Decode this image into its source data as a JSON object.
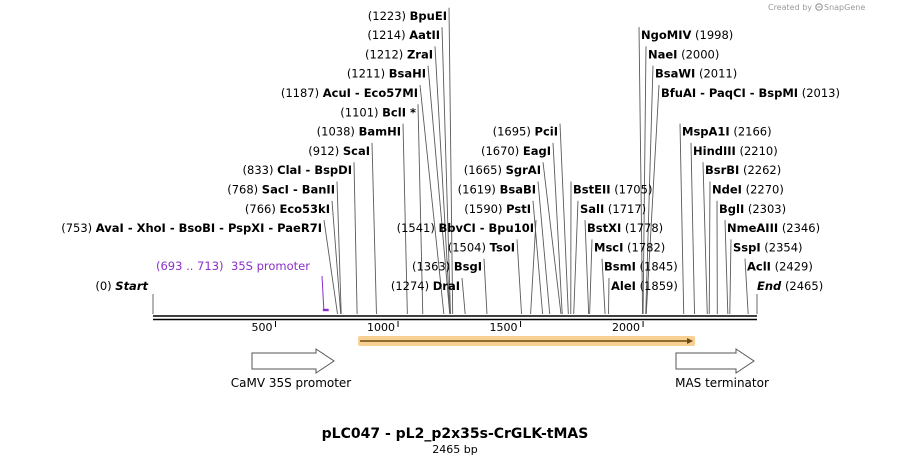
{
  "credit": {
    "created_by": "Created by",
    "brand": "SnapGene"
  },
  "title": "pLC047 - pL2_p2x35s-CrGLK-tMAS",
  "subtitle": "2465 bp",
  "total_bp": 2465,
  "ticks": [
    {
      "bp": 500,
      "label": "500"
    },
    {
      "bp": 1000,
      "label": "1000"
    },
    {
      "bp": 1500,
      "label": "1500"
    },
    {
      "bp": 2000,
      "label": "2000"
    }
  ],
  "promoter_region": {
    "label_pos": "(693 .. 713)",
    "label_name": "35S promoter",
    "start": 693,
    "end": 713,
    "color": "#8b2fc9"
  },
  "features": [
    {
      "name": "CaMV 35S promoter",
      "start": 405,
      "end": 748,
      "direction": "right"
    },
    {
      "name": "MAS terminator",
      "start": 2200,
      "end": 2400,
      "direction": "right"
    }
  ],
  "orf": {
    "start": 837,
    "end": 2200,
    "color": "#f2a93b"
  },
  "sites": [
    {
      "pos": "(0)",
      "name": "Start",
      "bp": 0,
      "style": "italic",
      "row": 0,
      "side": "left"
    },
    {
      "pos": "(1274)",
      "name": "DraI",
      "bp": 1274,
      "row": 0,
      "side": "left"
    },
    {
      "pos": "(1363)",
      "name": "BsgI",
      "bp": 1363,
      "row": 1,
      "side": "left"
    },
    {
      "pos": "(1504)",
      "name": "TsoI",
      "bp": 1504,
      "row": 2,
      "side": "left"
    },
    {
      "pos": "(1541)",
      "name": "BbvCI - Bpu10I",
      "bp": 1541,
      "row": 3,
      "side": "left"
    },
    {
      "pos": "(1590)",
      "name": "PstI",
      "bp": 1590,
      "row": 4,
      "side": "left"
    },
    {
      "pos": "(1619)",
      "name": "BsaBI",
      "bp": 1619,
      "row": 5,
      "side": "left"
    },
    {
      "pos": "(1665)",
      "name": "SgrAI",
      "bp": 1665,
      "row": 6,
      "side": "left"
    },
    {
      "pos": "(1670)",
      "name": "EagI",
      "bp": 1670,
      "row": 7,
      "side": "left"
    },
    {
      "pos": "(1695)",
      "name": "PciI",
      "bp": 1695,
      "row": 8,
      "side": "left"
    },
    {
      "pos": "(753)",
      "name": "AvaI - XhoI - BsoBI - PspXI - PaeR7I",
      "bp": 753,
      "row": 3,
      "side": "left"
    },
    {
      "pos": "(766)",
      "name": "Eco53kI",
      "bp": 766,
      "row": 4,
      "side": "left"
    },
    {
      "pos": "(768)",
      "name": "SacI - BanII",
      "bp": 768,
      "row": 5,
      "side": "left"
    },
    {
      "pos": "(833)",
      "name": "ClaI - BspDI",
      "bp": 833,
      "row": 6,
      "side": "left"
    },
    {
      "pos": "(912)",
      "name": "ScaI",
      "bp": 912,
      "row": 7,
      "side": "left"
    },
    {
      "pos": "(1038)",
      "name": "BamHI",
      "bp": 1038,
      "row": 8,
      "side": "left"
    },
    {
      "pos": "(1101)",
      "name": "BclI *",
      "bp": 1101,
      "row": 9,
      "side": "left"
    },
    {
      "pos": "(1187)",
      "name": "AcuI - Eco57MI",
      "bp": 1187,
      "row": 10,
      "side": "left"
    },
    {
      "pos": "(1211)",
      "name": "BsaHI",
      "bp": 1211,
      "row": 11,
      "side": "left"
    },
    {
      "pos": "(1212)",
      "name": "ZraI",
      "bp": 1212,
      "row": 12,
      "side": "left"
    },
    {
      "pos": "(1214)",
      "name": "AatII",
      "bp": 1214,
      "row": 13,
      "side": "left"
    },
    {
      "pos": "(1223)",
      "name": "BpuEI",
      "bp": 1223,
      "row": 14,
      "side": "left"
    },
    {
      "pos": "(1859)",
      "name": "AleI",
      "bp": 1859,
      "row": 0,
      "side": "right"
    },
    {
      "pos": "(1845)",
      "name": "BsmI",
      "bp": 1845,
      "row": 1,
      "side": "right"
    },
    {
      "pos": "(1782)",
      "name": "MscI",
      "bp": 1782,
      "row": 2,
      "side": "right"
    },
    {
      "pos": "(1778)",
      "name": "BstXI",
      "bp": 1778,
      "row": 3,
      "side": "right"
    },
    {
      "pos": "(1717)",
      "name": "SalI",
      "bp": 1717,
      "row": 4,
      "side": "right"
    },
    {
      "pos": "(1705)",
      "name": "BstEII",
      "bp": 1705,
      "row": 5,
      "side": "right"
    },
    {
      "pos": "(2465)",
      "name": "End",
      "bp": 2465,
      "style": "italic",
      "row": 0,
      "side": "right"
    },
    {
      "pos": "(2429)",
      "name": "AclI",
      "bp": 2429,
      "row": 1,
      "side": "right"
    },
    {
      "pos": "(2354)",
      "name": "SspI",
      "bp": 2354,
      "row": 2,
      "side": "right"
    },
    {
      "pos": "(2346)",
      "name": "NmeAIII",
      "bp": 2346,
      "row": 3,
      "side": "right"
    },
    {
      "pos": "(2303)",
      "name": "BglI",
      "bp": 2303,
      "row": 4,
      "side": "right"
    },
    {
      "pos": "(2270)",
      "name": "NdeI",
      "bp": 2270,
      "row": 5,
      "side": "right"
    },
    {
      "pos": "(2262)",
      "name": "BsrBI",
      "bp": 2262,
      "row": 6,
      "side": "right"
    },
    {
      "pos": "(2210)",
      "name": "HindIII",
      "bp": 2210,
      "row": 7,
      "side": "right"
    },
    {
      "pos": "(2166)",
      "name": "MspA1I",
      "bp": 2166,
      "row": 8,
      "side": "right"
    },
    {
      "pos": "(2013)",
      "name": "BfuAI - PaqCI - BspMI",
      "bp": 2013,
      "row": 10,
      "side": "right"
    },
    {
      "pos": "(2011)",
      "name": "BsaWI",
      "bp": 2011,
      "row": 11,
      "side": "right"
    },
    {
      "pos": "(2000)",
      "name": "NaeI",
      "bp": 2000,
      "row": 12,
      "side": "right"
    },
    {
      "pos": "(1998)",
      "name": "NgoMIV",
      "bp": 1998,
      "row": 13,
      "side": "right"
    }
  ]
}
